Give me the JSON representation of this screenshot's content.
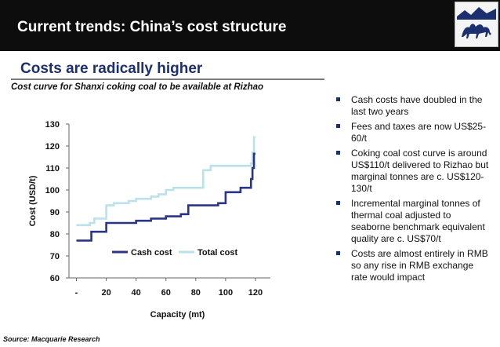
{
  "header": {
    "title": "Current trends: China’s cost structure"
  },
  "subheader": {
    "title": "Costs are radically higher"
  },
  "chart_title": "Cost curve for Shanxi coking coal to be available at Rizhao",
  "source": "Source: Macquarie Research",
  "bullets": [
    "Cash costs have doubled in the last two years",
    "Fees and taxes are now US$25-60/t",
    "Coking coal cost curve is around US$110/t delivered to Rizhao but marginal tonnes are c. US$120-130/t",
    "Incremental marginal tonnes of thermal coal adjusted to seaborne benchmark equivalent quality are c. US$70/t",
    "Costs are almost entirely in RMB so any rise in RMB exchange rate would impact"
  ],
  "chart_data": {
    "type": "line",
    "step": true,
    "xlabel": "Capacity (mt)",
    "ylabel": "Cost (USD/t)",
    "xlim": [
      -5,
      130
    ],
    "ylim": [
      60,
      130
    ],
    "xticks": [
      "-",
      "20",
      "40",
      "60",
      "80",
      "100",
      "120"
    ],
    "xtick_values": [
      0,
      20,
      40,
      60,
      80,
      100,
      120
    ],
    "yticks": [
      60,
      70,
      80,
      90,
      100,
      110,
      120,
      130
    ],
    "grid": false,
    "legend": "bottom-center",
    "series": [
      {
        "name": "Cash cost",
        "color": "#2b3585",
        "x": [
          0,
          5,
          10,
          15,
          20,
          25,
          30,
          35,
          40,
          45,
          50,
          55,
          60,
          65,
          70,
          75,
          80,
          85,
          90,
          95,
          100,
          105,
          110,
          115,
          117,
          118,
          119,
          120
        ],
        "y": [
          77,
          77,
          81,
          81,
          85,
          85,
          85,
          85,
          86,
          86,
          87,
          87,
          88,
          88,
          89,
          93,
          93,
          93,
          93,
          94,
          99,
          99,
          101,
          101,
          105,
          110,
          116.5,
          116.5
        ]
      },
      {
        "name": "Total cost",
        "color": "#b9e2ea",
        "x": [
          0,
          3,
          6,
          9,
          12,
          15,
          18,
          20,
          25,
          30,
          35,
          40,
          45,
          50,
          55,
          60,
          65,
          70,
          75,
          80,
          85,
          90,
          95,
          100,
          105,
          110,
          115,
          117,
          118,
          119,
          120
        ],
        "y": [
          84,
          84,
          84,
          85,
          87,
          87,
          87,
          93,
          94,
          94,
          95,
          96,
          96,
          97,
          98,
          100,
          101,
          101,
          101,
          101,
          109,
          111,
          111,
          111,
          111,
          111,
          111,
          112,
          117,
          124,
          124
        ]
      }
    ]
  }
}
